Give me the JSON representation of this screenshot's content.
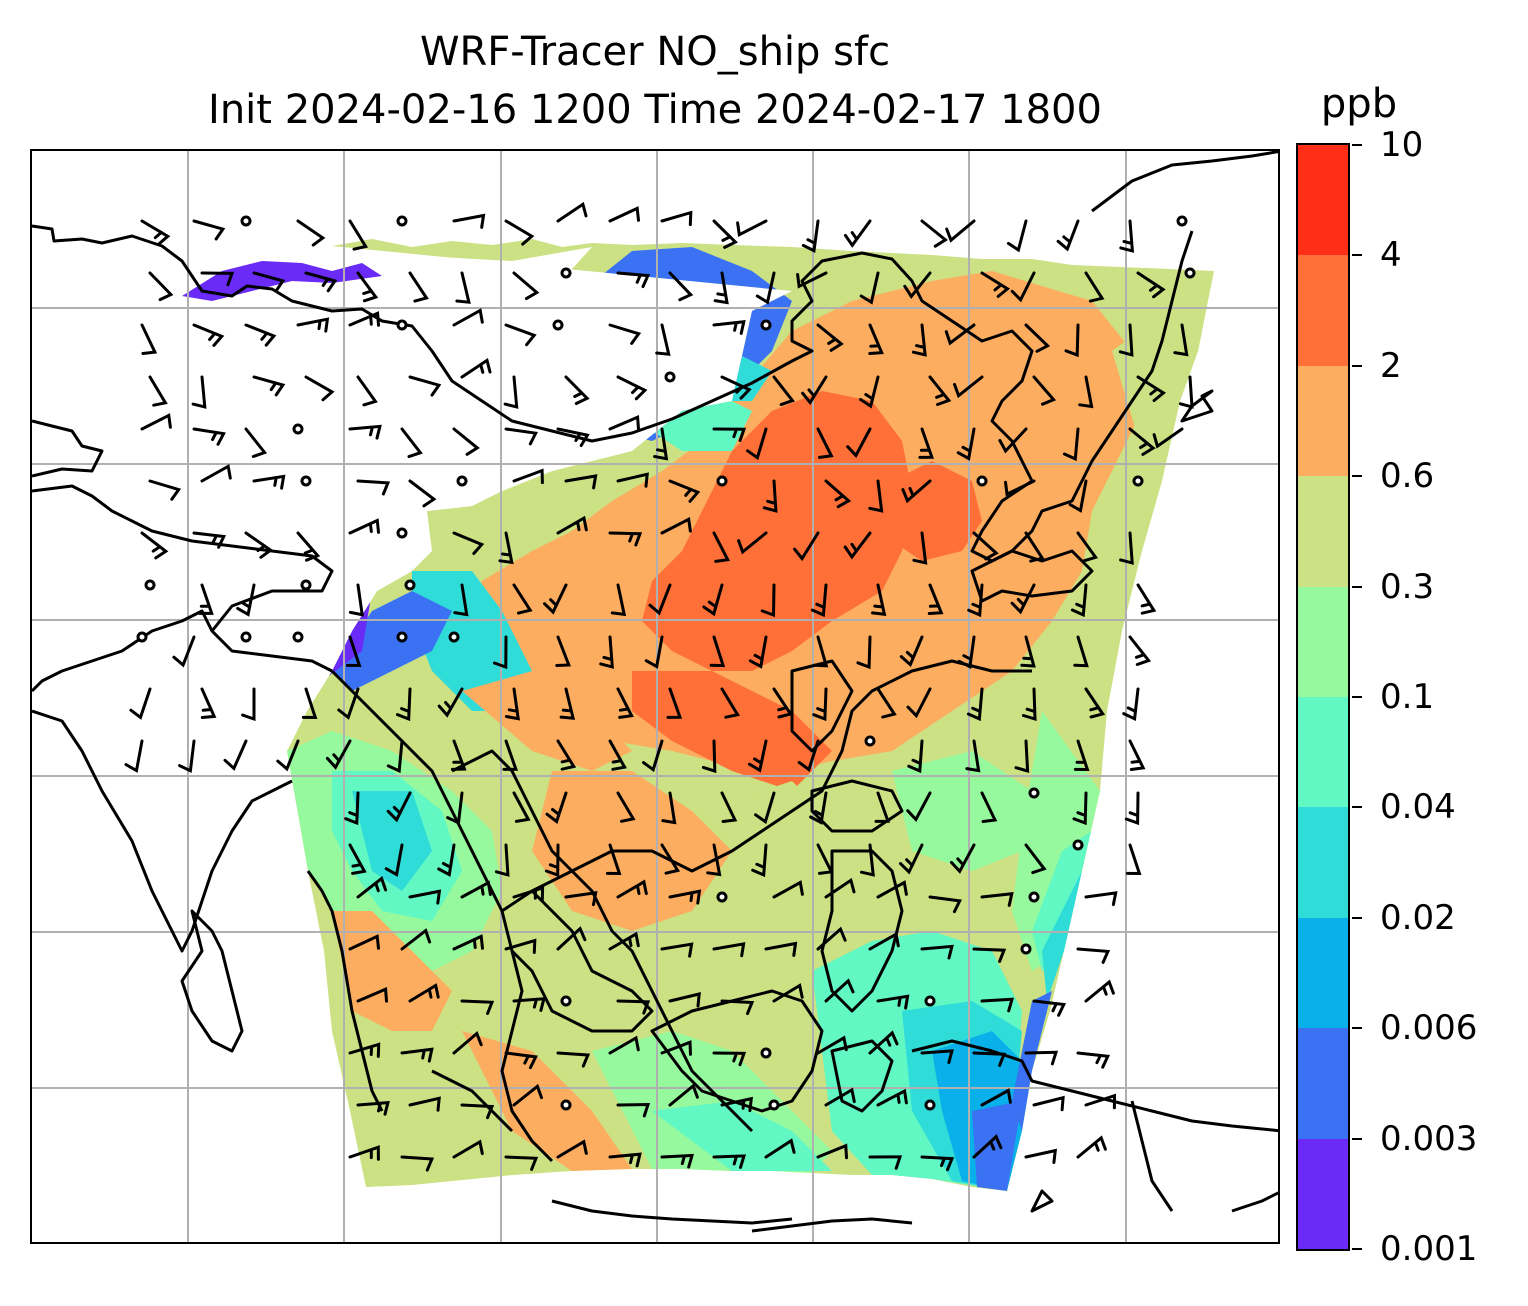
{
  "title": {
    "line1": "WRF-Tracer NO_ship sfc",
    "line2": "Init 2024-02-16 1200 Time 2024-02-17 1800"
  },
  "colorbar": {
    "unit": "ppb",
    "tick_labels": [
      "0.001",
      "0.003",
      "0.006",
      "0.02",
      "0.04",
      "0.1",
      "0.3",
      "0.6",
      "2",
      "4",
      "10"
    ],
    "colors": [
      "#6a2bf7",
      "#3b72f3",
      "#0ab0ea",
      "#2fdcd8",
      "#62f8c3",
      "#96f99d",
      "#cbe183",
      "#fdad60",
      "#ff6f38",
      "#ff2f17"
    ]
  },
  "map": {
    "projection_grid": "on",
    "field": "NO_ship surface tracer concentration",
    "overlay": "wind barbs",
    "coastlines": "black"
  },
  "colors": {
    "grid": "#b0b0b0",
    "coast": "#000000",
    "frame": "#000000"
  }
}
